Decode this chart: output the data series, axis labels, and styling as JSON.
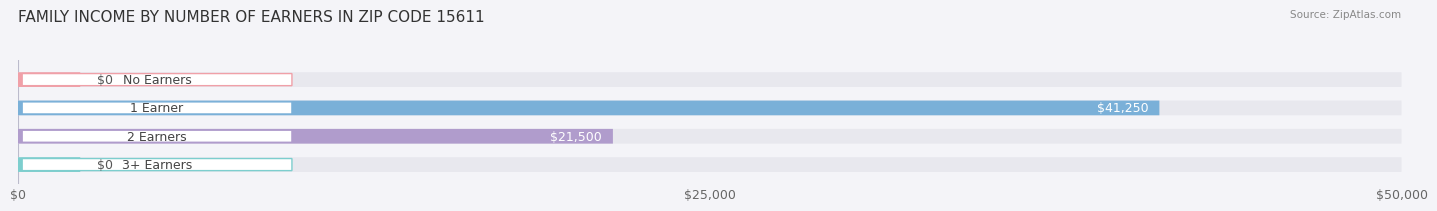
{
  "title": "FAMILY INCOME BY NUMBER OF EARNERS IN ZIP CODE 15611",
  "source": "Source: ZipAtlas.com",
  "categories": [
    "No Earners",
    "1 Earner",
    "2 Earners",
    "3+ Earners"
  ],
  "values": [
    0,
    41250,
    21500,
    0
  ],
  "bar_colors": [
    "#f0a0a8",
    "#7ab0d8",
    "#b09ccc",
    "#7dcece"
  ],
  "value_labels": [
    "$0",
    "$41,250",
    "$21,500",
    "$0"
  ],
  "xlim": [
    0,
    50000
  ],
  "xticks": [
    0,
    25000,
    50000
  ],
  "xticklabels": [
    "$0",
    "$25,000",
    "$50,000"
  ],
  "bar_background": "#e8e8ee",
  "title_fontsize": 11,
  "tick_fontsize": 9,
  "label_fontsize": 9,
  "value_fontsize": 9,
  "bar_height": 0.52,
  "fig_bg": "#f4f4f8"
}
